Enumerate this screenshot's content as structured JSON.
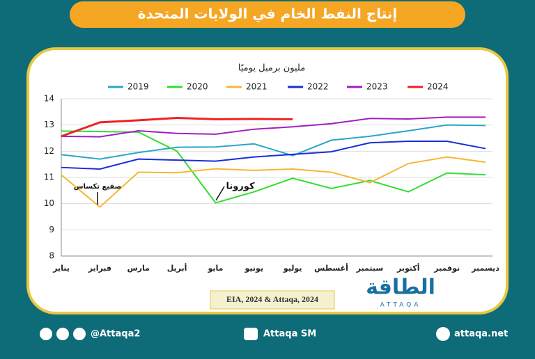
{
  "chart_data": {
    "type": "line",
    "title": "إنتاج النفط الخام في الولايات المتحدة",
    "y_label": "مليون برميل يوميًا",
    "categories": [
      "يناير",
      "فبراير",
      "مارس",
      "أبريل",
      "مايو",
      "يونيو",
      "يوليو",
      "أغسطس",
      "سبتمبر",
      "أكتوبر",
      "نوفمبر",
      "ديسمبر"
    ],
    "series": [
      {
        "name": "2019",
        "color": "#2aa6c8",
        "values": [
          11.87,
          11.7,
          11.95,
          12.15,
          12.16,
          12.28,
          11.83,
          12.42,
          12.57,
          12.78,
          13.0,
          12.98
        ]
      },
      {
        "name": "2020",
        "color": "#33dd33",
        "values": [
          12.77,
          12.75,
          12.73,
          12.0,
          10.03,
          10.45,
          10.97,
          10.58,
          10.88,
          10.45,
          11.17,
          11.1
        ]
      },
      {
        "name": "2021",
        "color": "#f5b731",
        "values": [
          11.1,
          9.87,
          11.2,
          11.18,
          11.33,
          11.27,
          11.32,
          11.2,
          10.8,
          11.53,
          11.78,
          11.58
        ]
      },
      {
        "name": "2022",
        "color": "#1a2ed8",
        "values": [
          11.38,
          11.32,
          11.7,
          11.66,
          11.62,
          11.78,
          11.88,
          11.98,
          12.32,
          12.38,
          12.38,
          12.1
        ]
      },
      {
        "name": "2023",
        "color": "#a020c0",
        "values": [
          12.57,
          12.55,
          12.78,
          12.68,
          12.65,
          12.84,
          12.93,
          13.05,
          13.25,
          13.23,
          13.3,
          13.3
        ]
      },
      {
        "name": "2024",
        "color": "#ee2222",
        "values": [
          12.57,
          13.1,
          13.18,
          13.27,
          13.22,
          13.23,
          13.22,
          null,
          null,
          null,
          null,
          null
        ]
      }
    ],
    "ylim": [
      8,
      14
    ],
    "yticks": [
      8,
      9,
      10,
      11,
      12,
      13,
      14
    ],
    "grid": true,
    "annotations": [
      "صقيع تكساس",
      "كورونا"
    ],
    "source": "EIA, 2024 & Attaqa, 2024"
  },
  "logo": {
    "name": "الطاقة",
    "latin": "ATTAQA"
  },
  "footer": {
    "social": "@Attaqa2",
    "youtube": "Attaqa SM",
    "website": "attaqa.net"
  }
}
